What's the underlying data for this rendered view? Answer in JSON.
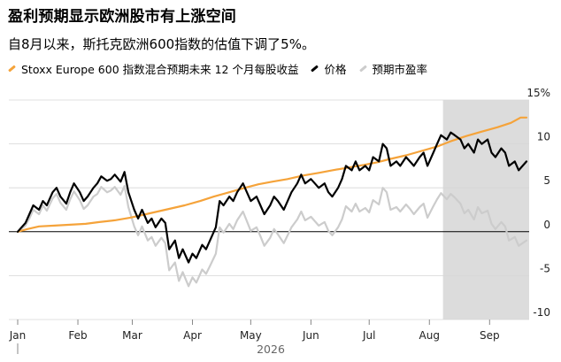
{
  "header": {
    "title": "盈利预期显示欧洲股市有上涨空间",
    "subtitle": "自8月以来，斯托克欧洲600指数的估值下调了5%。"
  },
  "chart_data": {
    "type": "line",
    "x_axis": {
      "months": [
        "Jan",
        "Feb",
        "Mar",
        "Apr",
        "May",
        "Jun",
        "Jul",
        "Aug",
        "Sep"
      ],
      "year": "2026"
    },
    "y_axis": {
      "ticks": [
        15,
        10,
        5,
        0,
        -5,
        -10
      ],
      "tick_labels": [
        "15%",
        "10",
        "5",
        "0",
        "-5",
        "-10"
      ],
      "ylim": [
        -10,
        15
      ],
      "side": "right"
    },
    "grid": true,
    "legend_position": "top-left",
    "highlight": {
      "from": "2026-08-08",
      "to": "2026-09-20",
      "color": "#dcdcdc"
    },
    "series": [
      {
        "name": "Stoxx Europe 600 指数混合预期未来 12 个月每股收益",
        "color": "#f5a33a",
        "points": [
          [
            "2026-01-01",
            0
          ],
          [
            "2026-01-06",
            0.3
          ],
          [
            "2026-01-12",
            0.6
          ],
          [
            "2026-01-20",
            0.7
          ],
          [
            "2026-01-28",
            0.8
          ],
          [
            "2026-02-05",
            0.9
          ],
          [
            "2026-02-12",
            1.1
          ],
          [
            "2026-02-20",
            1.3
          ],
          [
            "2026-02-28",
            1.6
          ],
          [
            "2026-03-06",
            1.9
          ],
          [
            "2026-03-12",
            2.2
          ],
          [
            "2026-03-20",
            2.6
          ],
          [
            "2026-03-28",
            3.0
          ],
          [
            "2026-04-05",
            3.5
          ],
          [
            "2026-04-12",
            4.0
          ],
          [
            "2026-04-20",
            4.5
          ],
          [
            "2026-04-28",
            5.0
          ],
          [
            "2026-05-05",
            5.4
          ],
          [
            "2026-05-12",
            5.7
          ],
          [
            "2026-05-20",
            6.0
          ],
          [
            "2026-05-28",
            6.4
          ],
          [
            "2026-06-05",
            6.7
          ],
          [
            "2026-06-12",
            7.0
          ],
          [
            "2026-06-20",
            7.3
          ],
          [
            "2026-06-28",
            7.6
          ],
          [
            "2026-07-05",
            7.9
          ],
          [
            "2026-07-12",
            8.3
          ],
          [
            "2026-07-20",
            8.7
          ],
          [
            "2026-07-28",
            9.2
          ],
          [
            "2026-08-05",
            9.7
          ],
          [
            "2026-08-12",
            10.3
          ],
          [
            "2026-08-20",
            10.9
          ],
          [
            "2026-08-28",
            11.4
          ],
          [
            "2026-09-05",
            11.9
          ],
          [
            "2026-09-12",
            12.4
          ],
          [
            "2026-09-17",
            13.0
          ],
          [
            "2026-09-20",
            13.0
          ]
        ]
      },
      {
        "name": "价格",
        "color": "#000000",
        "points": [
          [
            "2026-01-01",
            0
          ],
          [
            "2026-01-05",
            1.0
          ],
          [
            "2026-01-07",
            2.0
          ],
          [
            "2026-01-09",
            3.0
          ],
          [
            "2026-01-12",
            2.5
          ],
          [
            "2026-01-14",
            3.5
          ],
          [
            "2026-01-16",
            3.0
          ],
          [
            "2026-01-19",
            4.5
          ],
          [
            "2026-01-21",
            5.0
          ],
          [
            "2026-01-23",
            4.0
          ],
          [
            "2026-01-26",
            3.2
          ],
          [
            "2026-01-28",
            4.5
          ],
          [
            "2026-01-30",
            5.5
          ],
          [
            "2026-02-02",
            4.5
          ],
          [
            "2026-02-04",
            3.5
          ],
          [
            "2026-02-06",
            4.0
          ],
          [
            "2026-02-09",
            5.0
          ],
          [
            "2026-02-11",
            5.5
          ],
          [
            "2026-02-13",
            6.3
          ],
          [
            "2026-02-16",
            5.8
          ],
          [
            "2026-02-18",
            6.0
          ],
          [
            "2026-02-20",
            6.5
          ],
          [
            "2026-02-23",
            5.7
          ],
          [
            "2026-02-25",
            6.8
          ],
          [
            "2026-02-27",
            4.5
          ],
          [
            "2026-03-02",
            2.5
          ],
          [
            "2026-03-04",
            1.5
          ],
          [
            "2026-03-06",
            2.5
          ],
          [
            "2026-03-09",
            1.0
          ],
          [
            "2026-03-11",
            1.5
          ],
          [
            "2026-03-13",
            0.5
          ],
          [
            "2026-03-16",
            1.5
          ],
          [
            "2026-03-18",
            1.0
          ],
          [
            "2026-03-20",
            -2.0
          ],
          [
            "2026-03-23",
            -1.0
          ],
          [
            "2026-03-25",
            -3.0
          ],
          [
            "2026-03-27",
            -2.0
          ],
          [
            "2026-03-30",
            -3.5
          ],
          [
            "2026-04-01",
            -2.5
          ],
          [
            "2026-04-03",
            -3.0
          ],
          [
            "2026-04-06",
            -1.5
          ],
          [
            "2026-04-08",
            -2.0
          ],
          [
            "2026-04-10",
            -1.0
          ],
          [
            "2026-04-13",
            0.5
          ],
          [
            "2026-04-15",
            3.5
          ],
          [
            "2026-04-17",
            3.0
          ],
          [
            "2026-04-20",
            4.0
          ],
          [
            "2026-04-22",
            3.5
          ],
          [
            "2026-04-24",
            4.5
          ],
          [
            "2026-04-27",
            5.5
          ],
          [
            "2026-04-29",
            4.5
          ],
          [
            "2026-05-01",
            3.5
          ],
          [
            "2026-05-04",
            4.0
          ],
          [
            "2026-05-06",
            3.0
          ],
          [
            "2026-05-08",
            2.0
          ],
          [
            "2026-05-11",
            3.0
          ],
          [
            "2026-05-13",
            4.0
          ],
          [
            "2026-05-15",
            3.5
          ],
          [
            "2026-05-18",
            2.5
          ],
          [
            "2026-05-20",
            3.5
          ],
          [
            "2026-05-22",
            4.5
          ],
          [
            "2026-05-25",
            5.5
          ],
          [
            "2026-05-27",
            6.5
          ],
          [
            "2026-05-29",
            5.5
          ],
          [
            "2026-06-01",
            6.0
          ],
          [
            "2026-06-03",
            5.5
          ],
          [
            "2026-06-05",
            5.0
          ],
          [
            "2026-06-08",
            5.5
          ],
          [
            "2026-06-10",
            4.5
          ],
          [
            "2026-06-12",
            4.0
          ],
          [
            "2026-06-15",
            5.0
          ],
          [
            "2026-06-17",
            6.0
          ],
          [
            "2026-06-19",
            7.5
          ],
          [
            "2026-06-22",
            7.0
          ],
          [
            "2026-06-24",
            8.0
          ],
          [
            "2026-06-26",
            7.0
          ],
          [
            "2026-06-29",
            7.5
          ],
          [
            "2026-07-01",
            7.0
          ],
          [
            "2026-07-03",
            8.5
          ],
          [
            "2026-07-06",
            8.0
          ],
          [
            "2026-07-08",
            10.0
          ],
          [
            "2026-07-10",
            9.5
          ],
          [
            "2026-07-12",
            7.5
          ],
          [
            "2026-07-15",
            8.0
          ],
          [
            "2026-07-17",
            7.5
          ],
          [
            "2026-07-20",
            8.5
          ],
          [
            "2026-07-22",
            8.0
          ],
          [
            "2026-07-24",
            7.5
          ],
          [
            "2026-07-27",
            8.5
          ],
          [
            "2026-07-29",
            9.0
          ],
          [
            "2026-07-31",
            7.5
          ],
          [
            "2026-08-03",
            9.0
          ],
          [
            "2026-08-05",
            10.0
          ],
          [
            "2026-08-07",
            11.0
          ],
          [
            "2026-08-10",
            10.5
          ],
          [
            "2026-08-12",
            11.3
          ],
          [
            "2026-08-14",
            11.0
          ],
          [
            "2026-08-17",
            10.5
          ],
          [
            "2026-08-19",
            9.5
          ],
          [
            "2026-08-21",
            10.0
          ],
          [
            "2026-08-24",
            9.0
          ],
          [
            "2026-08-26",
            10.5
          ],
          [
            "2026-08-28",
            10.0
          ],
          [
            "2026-08-31",
            10.5
          ],
          [
            "2026-09-02",
            9.0
          ],
          [
            "2026-09-04",
            8.5
          ],
          [
            "2026-09-07",
            9.5
          ],
          [
            "2026-09-09",
            9.0
          ],
          [
            "2026-09-11",
            7.5
          ],
          [
            "2026-09-14",
            8.0
          ],
          [
            "2026-09-16",
            7.0
          ],
          [
            "2026-09-18",
            7.5
          ],
          [
            "2026-09-20",
            8.0
          ]
        ]
      },
      {
        "name": "预期市盈率",
        "color": "#cccccc",
        "points": [
          [
            "2026-01-01",
            0
          ],
          [
            "2026-01-05",
            0.7
          ],
          [
            "2026-01-07",
            1.5
          ],
          [
            "2026-01-09",
            2.5
          ],
          [
            "2026-01-12",
            2.0
          ],
          [
            "2026-01-14",
            3.0
          ],
          [
            "2026-01-16",
            2.4
          ],
          [
            "2026-01-19",
            3.8
          ],
          [
            "2026-01-21",
            4.3
          ],
          [
            "2026-01-23",
            3.3
          ],
          [
            "2026-01-26",
            2.5
          ],
          [
            "2026-01-28",
            3.7
          ],
          [
            "2026-01-30",
            4.6
          ],
          [
            "2026-02-02",
            3.6
          ],
          [
            "2026-02-04",
            2.6
          ],
          [
            "2026-02-06",
            3.0
          ],
          [
            "2026-02-09",
            4.0
          ],
          [
            "2026-02-11",
            4.3
          ],
          [
            "2026-02-13",
            5.1
          ],
          [
            "2026-02-16",
            4.5
          ],
          [
            "2026-02-18",
            4.7
          ],
          [
            "2026-02-20",
            5.1
          ],
          [
            "2026-02-23",
            4.2
          ],
          [
            "2026-02-25",
            5.2
          ],
          [
            "2026-02-27",
            2.8
          ],
          [
            "2026-03-02",
            0.6
          ],
          [
            "2026-03-04",
            -0.4
          ],
          [
            "2026-03-06",
            0.6
          ],
          [
            "2026-03-09",
            -1.0
          ],
          [
            "2026-03-11",
            -0.6
          ],
          [
            "2026-03-13",
            -1.6
          ],
          [
            "2026-03-16",
            -0.7
          ],
          [
            "2026-03-18",
            -1.3
          ],
          [
            "2026-03-20",
            -4.4
          ],
          [
            "2026-03-23",
            -3.5
          ],
          [
            "2026-03-25",
            -5.6
          ],
          [
            "2026-03-27",
            -4.6
          ],
          [
            "2026-03-30",
            -6.2
          ],
          [
            "2026-04-01",
            -5.2
          ],
          [
            "2026-04-03",
            -5.8
          ],
          [
            "2026-04-06",
            -4.3
          ],
          [
            "2026-04-08",
            -4.8
          ],
          [
            "2026-04-10",
            -3.9
          ],
          [
            "2026-04-13",
            -2.5
          ],
          [
            "2026-04-15",
            0.5
          ],
          [
            "2026-04-17",
            -0.1
          ],
          [
            "2026-04-20",
            0.9
          ],
          [
            "2026-04-22",
            0.3
          ],
          [
            "2026-04-24",
            1.3
          ],
          [
            "2026-04-27",
            2.3
          ],
          [
            "2026-04-29",
            1.2
          ],
          [
            "2026-05-01",
            0.1
          ],
          [
            "2026-05-04",
            0.5
          ],
          [
            "2026-05-06",
            -0.5
          ],
          [
            "2026-05-08",
            -1.6
          ],
          [
            "2026-05-11",
            -0.7
          ],
          [
            "2026-05-13",
            0.3
          ],
          [
            "2026-05-15",
            -0.3
          ],
          [
            "2026-05-18",
            -1.3
          ],
          [
            "2026-05-20",
            -0.4
          ],
          [
            "2026-05-22",
            0.5
          ],
          [
            "2026-05-25",
            1.4
          ],
          [
            "2026-05-27",
            2.3
          ],
          [
            "2026-05-29",
            1.3
          ],
          [
            "2026-06-01",
            1.7
          ],
          [
            "2026-06-03",
            1.2
          ],
          [
            "2026-06-05",
            0.7
          ],
          [
            "2026-06-08",
            1.1
          ],
          [
            "2026-06-10",
            0.1
          ],
          [
            "2026-06-12",
            -0.4
          ],
          [
            "2026-06-15",
            0.5
          ],
          [
            "2026-06-17",
            1.4
          ],
          [
            "2026-06-19",
            2.9
          ],
          [
            "2026-06-22",
            2.3
          ],
          [
            "2026-06-24",
            3.2
          ],
          [
            "2026-06-26",
            2.3
          ],
          [
            "2026-06-29",
            2.7
          ],
          [
            "2026-07-01",
            2.2
          ],
          [
            "2026-07-03",
            3.6
          ],
          [
            "2026-07-06",
            3.1
          ],
          [
            "2026-07-08",
            5.0
          ],
          [
            "2026-07-10",
            4.5
          ],
          [
            "2026-07-12",
            2.5
          ],
          [
            "2026-07-15",
            2.8
          ],
          [
            "2026-07-17",
            2.3
          ],
          [
            "2026-07-20",
            3.1
          ],
          [
            "2026-07-22",
            2.6
          ],
          [
            "2026-07-24",
            2.0
          ],
          [
            "2026-07-27",
            2.8
          ],
          [
            "2026-07-29",
            3.2
          ],
          [
            "2026-07-31",
            1.6
          ],
          [
            "2026-08-03",
            2.9
          ],
          [
            "2026-08-05",
            3.7
          ],
          [
            "2026-08-07",
            4.4
          ],
          [
            "2026-08-10",
            3.7
          ],
          [
            "2026-08-12",
            4.3
          ],
          [
            "2026-08-14",
            3.9
          ],
          [
            "2026-08-17",
            3.2
          ],
          [
            "2026-08-19",
            2.1
          ],
          [
            "2026-08-21",
            2.5
          ],
          [
            "2026-08-24",
            1.4
          ],
          [
            "2026-08-26",
            2.8
          ],
          [
            "2026-08-28",
            2.1
          ],
          [
            "2026-08-31",
            2.4
          ],
          [
            "2026-09-02",
            0.9
          ],
          [
            "2026-09-04",
            0.3
          ],
          [
            "2026-09-07",
            1.1
          ],
          [
            "2026-09-09",
            0.6
          ],
          [
            "2026-09-11",
            -1.0
          ],
          [
            "2026-09-14",
            -0.6
          ],
          [
            "2026-09-16",
            -1.6
          ],
          [
            "2026-09-18",
            -1.3
          ],
          [
            "2026-09-20",
            -1.0
          ]
        ]
      }
    ]
  }
}
